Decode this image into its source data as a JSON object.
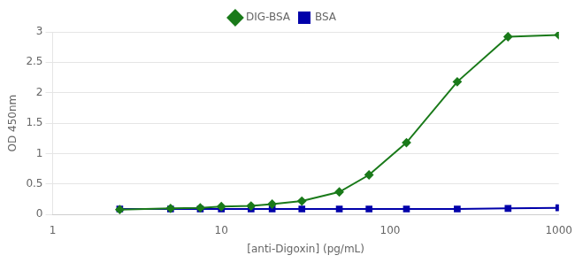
{
  "chart_data": {
    "type": "line",
    "x": [
      2.5,
      5,
      7.5,
      10,
      15,
      20,
      30,
      50,
      75,
      125,
      250,
      500,
      1000
    ],
    "series": [
      {
        "name": "DIG-BSA",
        "color": "#1a7a1a",
        "marker": "diamond",
        "values": [
          0.08,
          0.1,
          0.11,
          0.13,
          0.14,
          0.17,
          0.22,
          0.37,
          0.65,
          1.18,
          2.18,
          2.92,
          2.95
        ]
      },
      {
        "name": "BSA",
        "color": "#0000aa",
        "marker": "square",
        "values": [
          0.09,
          0.09,
          0.09,
          0.09,
          0.09,
          0.09,
          0.09,
          0.09,
          0.09,
          0.09,
          0.09,
          0.1,
          0.11
        ]
      }
    ],
    "xlabel": "[anti-Digoxin] (pg/mL)",
    "ylabel": "OD 450nm",
    "log": "x",
    "xlim": [
      1,
      1000
    ],
    "xticks": [
      1,
      10,
      100,
      1000
    ],
    "ylim": [
      0,
      3.0
    ],
    "yticks": [
      0,
      0.5,
      1,
      1.5,
      2,
      2.5,
      3
    ],
    "grid": "y",
    "legend": "top"
  }
}
